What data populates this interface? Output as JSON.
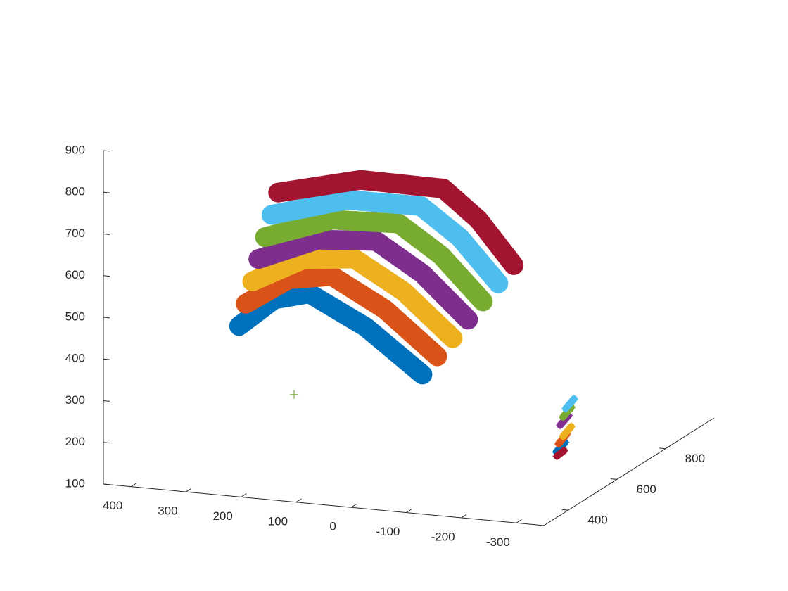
{
  "chart_data": {
    "type": "scatter3d",
    "xlim": [
      450,
      -350
    ],
    "xticks": [
      400,
      300,
      200,
      100,
      0,
      -100,
      -200,
      -300
    ],
    "ylim": [
      300,
      1000
    ],
    "yticks": [
      400,
      600,
      800
    ],
    "zlim": [
      100,
      900
    ],
    "zticks": [
      100,
      200,
      300,
      400,
      500,
      600,
      700,
      800,
      900
    ],
    "series": [
      {
        "color": "#0072bd",
        "x": [
          292,
          228,
          164,
          62,
          -41,
          null,
          -196,
          -212
        ],
        "y": [
          500,
          500,
          500,
          500,
          500,
          null,
          700,
          700
        ],
        "z": [
          425,
          497,
          519,
          451,
          350,
          null,
          110,
          135
        ]
      },
      {
        "color": "#d95319",
        "x": [
          280,
          202,
          123,
          27,
          -68,
          null,
          -200,
          -215
        ],
        "y": [
          500,
          500,
          500,
          500,
          500,
          null,
          700,
          700
        ],
        "z": [
          480,
          548,
          566,
          498,
          397,
          null,
          130,
          155
        ]
      },
      {
        "color": "#edb120",
        "x": [
          268,
          176,
          83,
          -7,
          -96,
          null,
          -208,
          -223
        ],
        "y": [
          500,
          500,
          500,
          500,
          500,
          null,
          700,
          700
        ],
        "z": [
          535,
          599,
          613,
          545,
          444,
          null,
          149,
          174
        ]
      },
      {
        "color": "#7e2f8e",
        "x": [
          257,
          149,
          43,
          -41,
          -124,
          null,
          -203,
          -218
        ],
        "y": [
          500,
          500,
          500,
          500,
          500,
          null,
          700,
          700
        ],
        "z": [
          590,
          650,
          660,
          592,
          492,
          null,
          175,
          200
        ]
      },
      {
        "color": "#77ac30",
        "x": [
          245,
          123,
          2,
          -75,
          -151,
          null,
          -208,
          -223,
          null,
          192
        ],
        "y": [
          500,
          500,
          500,
          500,
          500,
          null,
          700,
          700,
          null,
          500
        ],
        "z": [
          644,
          701,
          707,
          640,
          539,
          null,
          195,
          220,
          null,
          273
        ]
      },
      {
        "color": "#4dbeee",
        "x": [
          233,
          97,
          -38,
          -109,
          -179,
          null,
          -213,
          -228
        ],
        "y": [
          500,
          500,
          500,
          500,
          500,
          null,
          700,
          700
        ],
        "z": [
          699,
          752,
          754,
          687,
          586,
          null,
          216,
          241
        ]
      },
      {
        "color": "#a2142f",
        "x": [
          221,
          71,
          -79,
          -143,
          -207,
          null,
          -197,
          -210
        ],
        "y": [
          500,
          500,
          500,
          500,
          500,
          null,
          700,
          700
        ],
        "z": [
          754,
          803,
          801,
          734,
          633,
          null,
          100,
          115
        ]
      }
    ]
  }
}
